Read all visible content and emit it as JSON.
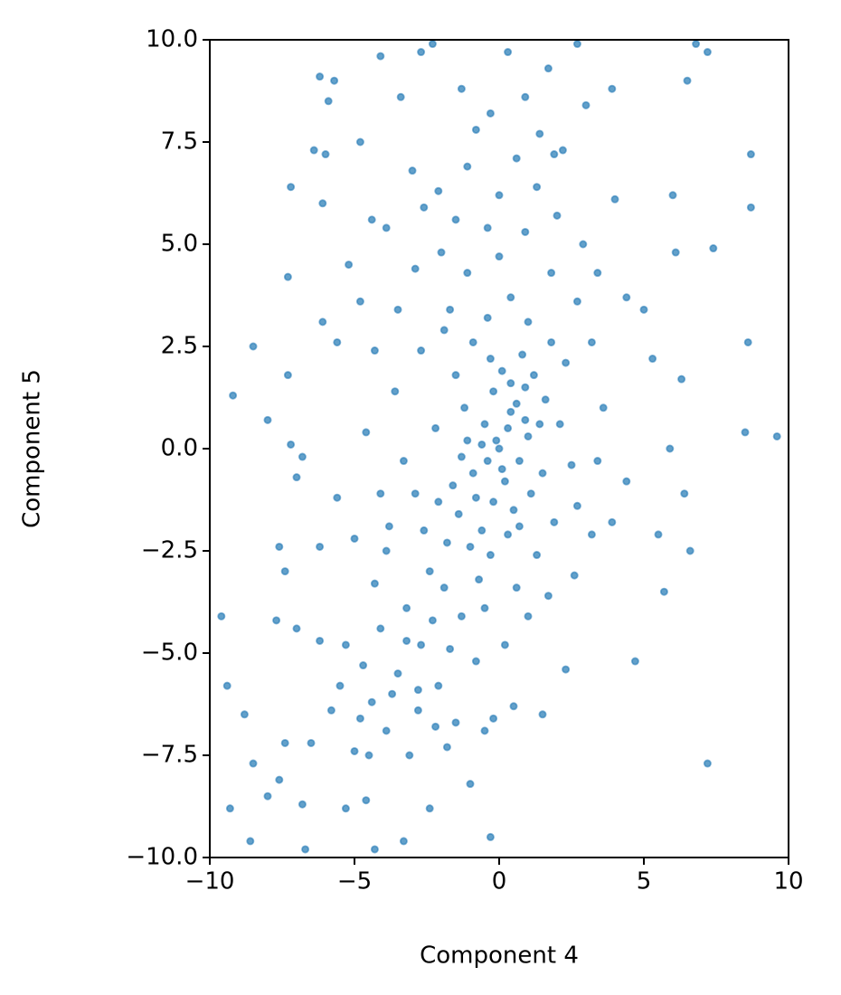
{
  "chart_data": {
    "type": "scatter",
    "xlabel": "Component 4",
    "ylabel": "Component 5",
    "color": "#1f77b4",
    "xlim": [
      -10,
      10
    ],
    "ylim": [
      -10,
      10
    ],
    "xticks": [
      {
        "value": -10,
        "label": "−10"
      },
      {
        "value": -5,
        "label": "−5"
      },
      0,
      5,
      10
    ],
    "yticks": [
      {
        "value": -10,
        "label": "−10.0"
      },
      {
        "value": -7.5,
        "label": "−7.5"
      },
      {
        "value": -5,
        "label": "−5.0"
      },
      {
        "value": -2.5,
        "label": "−2.5"
      },
      {
        "value": 0,
        "label": "0.0"
      },
      2.5,
      {
        "value": 5,
        "label": "5.0"
      },
      7.5,
      {
        "value": 10,
        "label": "10.0"
      }
    ],
    "x": [
      -9.2,
      -8.5,
      -8,
      -7.2,
      -6.8,
      -7,
      -9.6,
      -9.4,
      -8.8,
      -8.5,
      -9.3,
      -8.6,
      -6.7,
      -4.3,
      -0.3,
      7.2,
      4.7,
      5.7,
      6.6,
      8.6,
      8.5,
      9.6,
      8.7,
      8.7,
      7.4,
      6.1,
      6,
      6.5,
      6.8,
      7.2,
      -6.2,
      -5.7,
      -4.1,
      -5.9,
      -4.8,
      -6.4,
      -6,
      -7.2,
      -6.1,
      -7.3,
      -7.3,
      -6.1,
      -5.2,
      -3.4,
      -2.7,
      -2.3,
      -1.3,
      0.3,
      1.7,
      2.7,
      3,
      2.2,
      1.4,
      -0.8,
      3.9,
      4,
      4.4,
      5,
      5.3,
      5.9,
      6.3,
      6.4,
      5.5,
      4.4,
      3.9,
      3.2,
      2.3,
      1.5,
      0.5,
      -0.2,
      -0.5,
      -2.4,
      -3.3,
      -4.6,
      -5.3,
      -6.8,
      -7.6,
      -8,
      -7.4,
      -6.5,
      -5.8,
      -4.8,
      -3.9,
      -5.3,
      -6.2,
      -7,
      -7.7,
      -7.4,
      -7.6,
      -6.2,
      -5.6,
      -5,
      -4.3,
      -3.9,
      -3.2,
      -2.7,
      -2.1,
      -1.5,
      -4.7,
      -3.5,
      -2.8,
      -1.8,
      -1,
      -4.1,
      -5.5,
      -3.1,
      0,
      0.3,
      -0.4,
      0.6,
      -0.8,
      0.2,
      -0.2,
      1,
      -1.1,
      0.5,
      -0.6,
      1.2,
      -1.4,
      0.8,
      -0.3,
      0.1,
      -1.8,
      1.5,
      -1.2,
      0.4,
      -0.9,
      0.7,
      -0.1,
      1.1,
      -1.6,
      0.9,
      -0.5,
      1.6,
      -2.1,
      -0.7,
      0.3,
      -1.9,
      -1.3,
      -0.5,
      0.6,
      1.3,
      -2.4,
      -2.6,
      -2.9,
      -2.2,
      -1.5,
      -0.9,
      -0.4,
      0.4,
      1,
      1.8,
      2.3,
      2.1,
      2.5,
      1.9,
      2.7,
      -3.3,
      -3.6,
      -2.7,
      -1.7,
      -1.1,
      0,
      0.9,
      1.8,
      2.7,
      3.2,
      3.6,
      3.4,
      -2,
      -2.6,
      -1.5,
      0,
      1.3,
      0.6,
      -0.4,
      -3.5,
      -4.3,
      -4.6,
      -4.1,
      -3.8,
      -2.8,
      -1.7,
      -0.8,
      0.2,
      1,
      1.7,
      2.6,
      -0.2,
      0.1,
      -0.6,
      0.4,
      -1,
      0.9,
      -0.3,
      -1.3,
      0.7,
      1.4,
      -2.3,
      -3.2,
      -3.7,
      -2.2,
      -4.5,
      -4.4,
      -5,
      -1.9,
      2.9,
      2,
      3.4,
      -2.9,
      -3.9,
      -4.4,
      -4.8,
      -5.6,
      -3,
      -2.1,
      -1.1,
      0.9,
      1.9,
      -0.3
    ],
    "values": [
      1.3,
      2.5,
      0.7,
      0.1,
      -0.2,
      -0.7,
      -4.1,
      -5.8,
      -6.5,
      -7.7,
      -8.8,
      -9.6,
      -9.8,
      -9.8,
      -9.5,
      -7.7,
      -5.2,
      -3.5,
      -2.5,
      2.6,
      0.4,
      0.3,
      7.2,
      5.9,
      4.9,
      4.8,
      6.2,
      9,
      9.9,
      9.7,
      9.1,
      9,
      9.6,
      8.5,
      7.5,
      7.3,
      7.2,
      6.4,
      6,
      4.2,
      1.8,
      3.1,
      4.5,
      8.6,
      9.7,
      9.9,
      8.8,
      9.7,
      9.3,
      9.9,
      8.4,
      7.3,
      7.7,
      7.8,
      8.8,
      6.1,
      3.7,
      3.4,
      2.2,
      0,
      1.7,
      -1.1,
      -2.1,
      -0.8,
      -1.8,
      -2.1,
      -5.4,
      -6.5,
      -6.3,
      -6.6,
      -6.9,
      -8.8,
      -9.6,
      -8.6,
      -8.8,
      -8.7,
      -8.1,
      -8.5,
      -7.2,
      -7.2,
      -6.4,
      -6.6,
      -6.9,
      -4.8,
      -4.7,
      -4.4,
      -4.2,
      -3,
      -2.4,
      -2.4,
      -1.2,
      -2.2,
      -3.3,
      -2.5,
      -3.9,
      -4.8,
      -5.8,
      -6.7,
      -5.3,
      -5.5,
      -6.4,
      -7.3,
      -8.2,
      -4.4,
      -5.8,
      -7.5,
      0,
      0.5,
      -0.3,
      1.1,
      -1.2,
      -0.8,
      1.4,
      0.3,
      0.2,
      -1.5,
      -2,
      1.8,
      -1.6,
      2.3,
      -2.6,
      1.9,
      -2.3,
      -0.6,
      1,
      0.9,
      -0.6,
      -0.3,
      0.2,
      -1.1,
      -0.9,
      1.5,
      0.6,
      1.2,
      -1.3,
      -3.2,
      -2.1,
      -3.4,
      -4.1,
      -3.9,
      -3.4,
      -2.6,
      -3,
      -2,
      -1.1,
      0.5,
      1.8,
      2.6,
      3.2,
      3.7,
      3.1,
      2.6,
      2.1,
      0.6,
      -0.4,
      -1.8,
      -1.4,
      -0.3,
      1.4,
      2.4,
      3.4,
      4.3,
      4.7,
      5.3,
      4.3,
      3.6,
      2.6,
      1,
      -0.3,
      4.8,
      5.9,
      5.6,
      6.2,
      6.4,
      7.1,
      5.4,
      3.4,
      2.4,
      0.4,
      -1.1,
      -1.9,
      -5.9,
      -4.9,
      -5.2,
      -4.8,
      -4.1,
      -3.6,
      -3.1,
      -1.3,
      -0.5,
      0.1,
      1.6,
      -2.4,
      0.7,
      2.2,
      -0.2,
      -1.9,
      0.6,
      -4.2,
      -4.7,
      -6,
      -6.8,
      -7.5,
      -6.2,
      -7.4,
      2.9,
      5,
      5.7,
      4.3,
      4.4,
      5.4,
      5.6,
      3.6,
      2.6,
      6.8,
      6.3,
      6.9,
      8.6,
      7.2,
      8.2
    ]
  }
}
